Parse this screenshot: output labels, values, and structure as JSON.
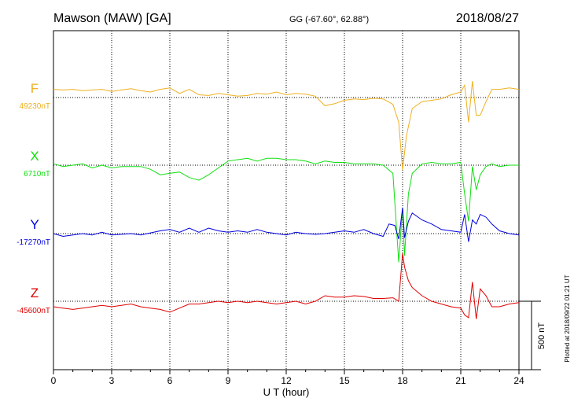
{
  "header": {
    "station": "Mawson (MAW)  [GA]",
    "coords": "GG (-67.60°,  62.88°)",
    "date": "2018/08/27"
  },
  "footer_note": "Plotted at 2018/09/22 01:21  UT",
  "scale_label": "500 nT",
  "colors": {
    "F": "#f0b020",
    "X": "#10e010",
    "Y": "#0000e0",
    "Z": "#e00000"
  },
  "chart_data": {
    "type": "line",
    "xlabel": "U T (hour)",
    "xlim": [
      0,
      24
    ],
    "xticks": [
      "0",
      "3",
      "6",
      "9",
      "12",
      "15",
      "18",
      "21",
      "24"
    ],
    "scale_bar_nT": 500,
    "series": [
      {
        "name": "F",
        "baseline_label": "49230nT",
        "baseline": 49230,
        "x": [
          0,
          0.5,
          1,
          1.5,
          2,
          2.5,
          3,
          3.5,
          4,
          4.5,
          5,
          5.5,
          6,
          6.5,
          7,
          7.5,
          8,
          8.5,
          9,
          9.5,
          10,
          10.5,
          11,
          11.5,
          12,
          12.5,
          13,
          13.5,
          14,
          14.5,
          15,
          15.5,
          16,
          16.5,
          17,
          17.5,
          17.8,
          18,
          18.2,
          18.5,
          19,
          19.5,
          20,
          20.5,
          21,
          21.2,
          21.4,
          21.6,
          21.8,
          22,
          22.3,
          22.6,
          23,
          23.5,
          24
        ],
        "y": [
          49290,
          49285,
          49290,
          49280,
          49285,
          49290,
          49275,
          49285,
          49295,
          49280,
          49270,
          49290,
          49300,
          49260,
          49290,
          49250,
          49245,
          49260,
          49250,
          49240,
          49245,
          49260,
          49255,
          49270,
          49250,
          49260,
          49255,
          49240,
          49170,
          49185,
          49210,
          49220,
          49215,
          49225,
          49220,
          49180,
          49050,
          48700,
          48950,
          49150,
          49200,
          49210,
          49220,
          49250,
          49270,
          49320,
          49050,
          49350,
          49100,
          49100,
          49200,
          49290,
          49290,
          49300,
          49290
        ]
      },
      {
        "name": "X",
        "baseline_label": "6710nT",
        "baseline": 6710,
        "x": [
          0,
          0.5,
          1,
          1.5,
          2,
          2.5,
          3,
          3.5,
          4,
          4.5,
          5,
          5.5,
          6,
          6.5,
          7,
          7.5,
          8,
          8.5,
          9,
          9.5,
          10,
          10.5,
          11,
          11.5,
          12,
          12.5,
          13,
          13.5,
          14,
          14.5,
          15,
          15.5,
          16,
          16.5,
          17,
          17.5,
          17.8,
          18,
          18.1,
          18.3,
          18.5,
          19,
          19.5,
          20,
          20.5,
          21,
          21.2,
          21.4,
          21.6,
          21.8,
          22,
          22.3,
          22.6,
          23,
          23.5,
          24
        ],
        "y": [
          6720,
          6700,
          6710,
          6720,
          6690,
          6710,
          6690,
          6700,
          6700,
          6700,
          6680,
          6640,
          6650,
          6660,
          6620,
          6600,
          6640,
          6690,
          6740,
          6750,
          6760,
          6740,
          6760,
          6760,
          6750,
          6750,
          6740,
          6720,
          6740,
          6730,
          6730,
          6720,
          6720,
          6720,
          6710,
          6650,
          6000,
          6400,
          6050,
          6500,
          6650,
          6720,
          6730,
          6720,
          6720,
          6730,
          6500,
          6300,
          6700,
          6530,
          6640,
          6700,
          6720,
          6700,
          6710,
          6710
        ]
      },
      {
        "name": "Y",
        "baseline_label": "-17270nT",
        "baseline": -17270,
        "x": [
          0,
          0.5,
          1,
          1.5,
          2,
          2.5,
          3,
          3.5,
          4,
          4.5,
          5,
          5.5,
          6,
          6.5,
          7,
          7.5,
          8,
          8.5,
          9,
          9.5,
          10,
          10.5,
          11,
          11.5,
          12,
          12.5,
          13,
          13.5,
          14,
          14.5,
          15,
          15.5,
          16,
          16.5,
          17,
          17.3,
          17.6,
          17.8,
          18,
          18.1,
          18.3,
          18.5,
          19,
          19.5,
          20,
          20.5,
          21,
          21.2,
          21.4,
          21.6,
          21.8,
          22,
          22.3,
          22.6,
          23,
          23.5,
          24
        ],
        "y": [
          -17270,
          -17290,
          -17280,
          -17270,
          -17280,
          -17260,
          -17280,
          -17275,
          -17270,
          -17280,
          -17265,
          -17250,
          -17240,
          -17260,
          -17230,
          -17260,
          -17230,
          -17250,
          -17260,
          -17250,
          -17260,
          -17240,
          -17260,
          -17270,
          -17280,
          -17260,
          -17270,
          -17275,
          -17270,
          -17260,
          -17250,
          -17260,
          -17240,
          -17270,
          -17290,
          -17200,
          -17210,
          -17310,
          -17080,
          -17300,
          -17180,
          -17120,
          -17170,
          -17200,
          -17240,
          -17250,
          -17260,
          -17130,
          -17330,
          -17170,
          -17200,
          -17130,
          -17150,
          -17200,
          -17250,
          -17270,
          -17280
        ]
      },
      {
        "name": "Z",
        "baseline_label": "-45600nT",
        "baseline": -45600,
        "x": [
          0,
          0.5,
          1,
          1.5,
          2,
          2.5,
          3,
          3.5,
          4,
          4.5,
          5,
          5.5,
          6,
          6.5,
          7,
          7.5,
          8,
          8.5,
          9,
          9.5,
          10,
          10.5,
          11,
          11.5,
          12,
          12.5,
          13,
          13.5,
          14,
          14.5,
          15,
          15.5,
          16,
          16.5,
          17,
          17.5,
          17.8,
          18,
          18.1,
          18.3,
          18.5,
          19,
          19.5,
          20,
          20.5,
          21,
          21.2,
          21.4,
          21.6,
          21.8,
          22,
          22.3,
          22.6,
          23,
          23.5,
          24
        ],
        "y": [
          -45640,
          -45650,
          -45660,
          -45650,
          -45640,
          -45630,
          -45640,
          -45630,
          -45620,
          -45640,
          -45650,
          -45660,
          -45680,
          -45650,
          -45620,
          -45620,
          -45610,
          -45600,
          -45610,
          -45600,
          -45610,
          -45600,
          -45610,
          -45620,
          -45610,
          -45600,
          -45620,
          -45600,
          -45560,
          -45570,
          -45570,
          -45560,
          -45565,
          -45580,
          -45580,
          -45575,
          -45600,
          -45250,
          -45350,
          -45450,
          -45500,
          -45560,
          -45600,
          -45620,
          -45640,
          -45650,
          -45700,
          -45720,
          -45460,
          -45730,
          -45510,
          -45560,
          -45640,
          -45640,
          -45620,
          -45610
        ]
      }
    ]
  }
}
